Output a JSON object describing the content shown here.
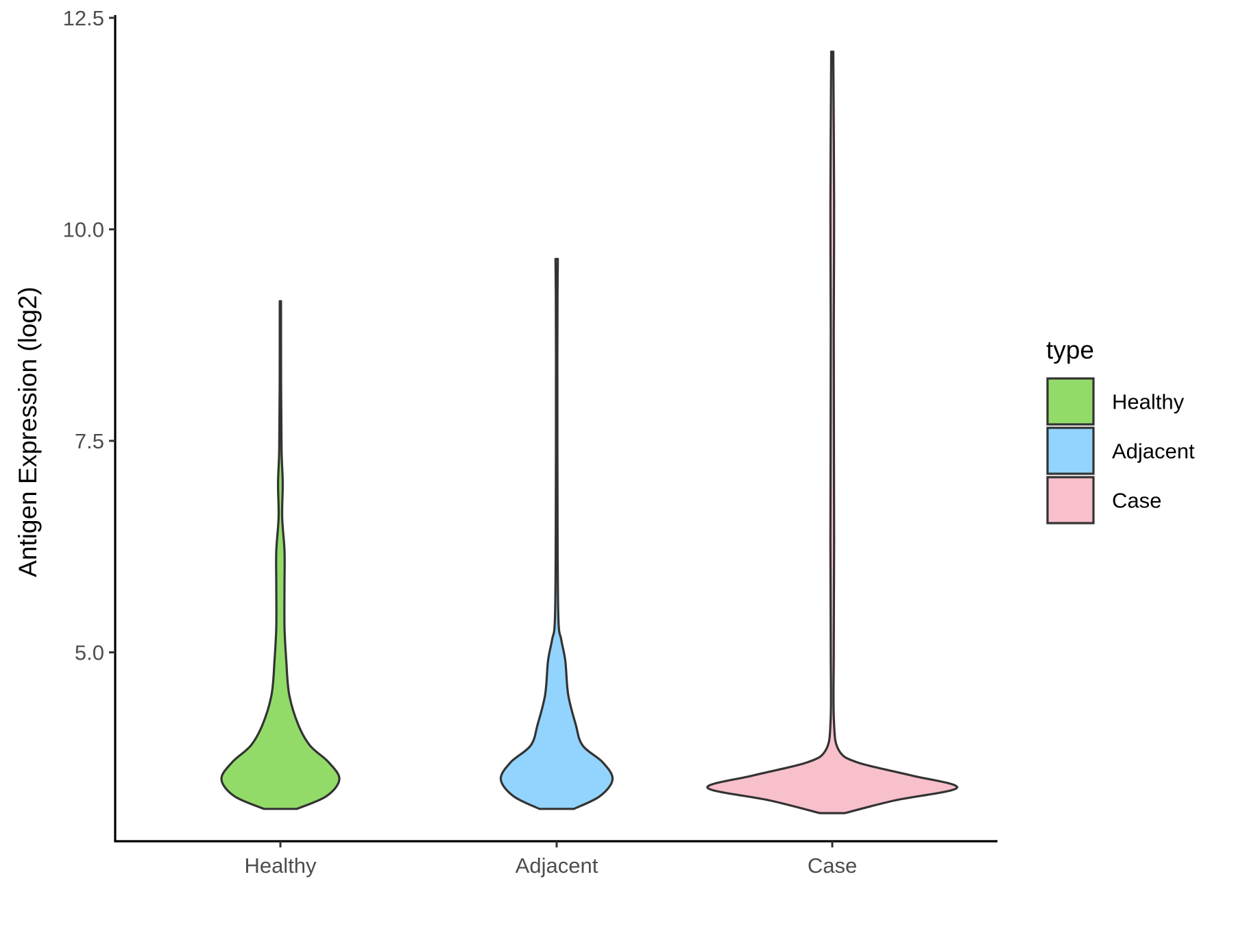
{
  "chart_data": {
    "type": "violin",
    "title": "",
    "xlabel": "",
    "ylabel": "Antigen Expression (log2)",
    "categories": [
      "Healthy",
      "Adjacent",
      "Case"
    ],
    "yticks": [
      "5.0",
      "7.5",
      "10.0",
      "12.5"
    ],
    "ytick_values": [
      5.0,
      7.5,
      10.0,
      12.5
    ],
    "ylim": [
      2.8,
      12.55
    ],
    "grid": false,
    "legend": {
      "title": "type",
      "placement": "right",
      "entries": [
        "Healthy",
        "Adjacent",
        "Case"
      ]
    },
    "series": [
      {
        "category": "Healthy",
        "color": "#93DB69",
        "min": 3.15,
        "max": 9.15,
        "density": [
          [
            3.15,
            0.28
          ],
          [
            3.3,
            0.78
          ],
          [
            3.5,
            1.0
          ],
          [
            3.7,
            0.82
          ],
          [
            3.9,
            0.5
          ],
          [
            4.15,
            0.3
          ],
          [
            4.5,
            0.15
          ],
          [
            4.9,
            0.1
          ],
          [
            5.3,
            0.07
          ],
          [
            5.8,
            0.07
          ],
          [
            6.2,
            0.07
          ],
          [
            6.6,
            0.03
          ],
          [
            7.0,
            0.04
          ],
          [
            7.4,
            0.02
          ],
          [
            8.2,
            0.012
          ],
          [
            9.15,
            0.01
          ]
        ]
      },
      {
        "category": "Adjacent",
        "color": "#92D4FD",
        "min": 3.15,
        "max": 9.65,
        "density": [
          [
            3.15,
            0.3
          ],
          [
            3.3,
            0.75
          ],
          [
            3.5,
            0.97
          ],
          [
            3.7,
            0.8
          ],
          [
            3.9,
            0.45
          ],
          [
            4.15,
            0.33
          ],
          [
            4.5,
            0.2
          ],
          [
            4.9,
            0.15
          ],
          [
            5.15,
            0.08
          ],
          [
            5.4,
            0.03
          ],
          [
            6.5,
            0.015
          ],
          [
            8.5,
            0.012
          ],
          [
            9.3,
            0.015
          ],
          [
            9.65,
            0.02
          ]
        ]
      },
      {
        "category": "Case",
        "color": "#F8C0CB",
        "min": 3.1,
        "max": 12.1,
        "density": [
          [
            3.1,
            0.1
          ],
          [
            3.25,
            0.5
          ],
          [
            3.4,
            1.0
          ],
          [
            3.55,
            0.62
          ],
          [
            3.7,
            0.2
          ],
          [
            3.85,
            0.05
          ],
          [
            4.2,
            0.013
          ],
          [
            5.0,
            0.012
          ],
          [
            6.3,
            0.015
          ],
          [
            8.8,
            0.012
          ],
          [
            10.3,
            0.015
          ],
          [
            12.1,
            0.008
          ]
        ]
      }
    ]
  }
}
